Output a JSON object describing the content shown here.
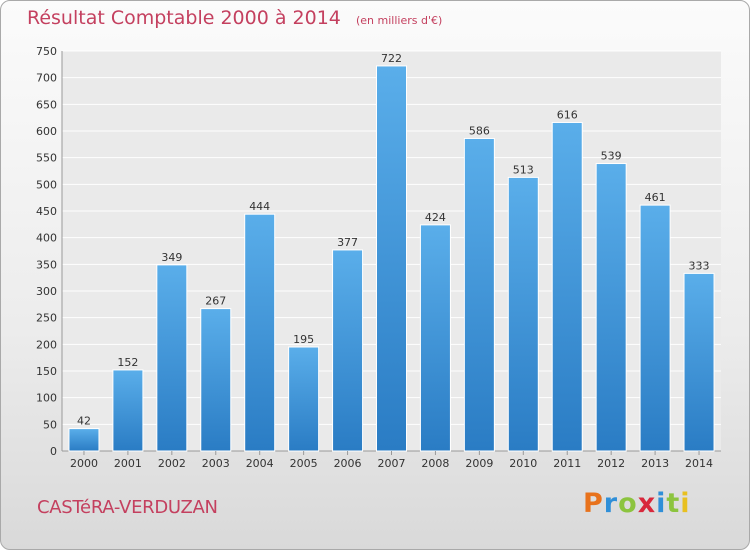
{
  "title": "Résultat Comptable 2000 à 2014",
  "subtitle": "(en milliers d'€)",
  "place_name": "CASTéRA-VERDUZAN",
  "logo": {
    "letters": [
      {
        "ch": "P",
        "color": "#e8721c"
      },
      {
        "ch": "r",
        "color": "#2f8fd8"
      },
      {
        "ch": "o",
        "color": "#8cc43f"
      },
      {
        "ch": "x",
        "color": "#d8283c"
      },
      {
        "ch": "i",
        "color": "#2f8fd8"
      },
      {
        "ch": "t",
        "color": "#8cc43f"
      },
      {
        "ch": "i",
        "color": "#e8c020"
      }
    ]
  },
  "chart_data": {
    "type": "bar",
    "categories": [
      "2000",
      "2001",
      "2002",
      "2003",
      "2004",
      "2005",
      "2006",
      "2007",
      "2008",
      "2009",
      "2010",
      "2011",
      "2012",
      "2013",
      "2014"
    ],
    "values": [
      42,
      152,
      349,
      267,
      444,
      195,
      377,
      722,
      424,
      586,
      513,
      616,
      539,
      461,
      333
    ],
    "ylim": [
      0,
      750
    ],
    "yticks": [
      0,
      50,
      100,
      150,
      200,
      250,
      300,
      350,
      400,
      450,
      500,
      550,
      600,
      650,
      700,
      750
    ],
    "grid": true,
    "bar_color": "#3a8fd6",
    "title": "Résultat Comptable 2000 à 2014",
    "subtitle": "(en milliers d'€)"
  }
}
